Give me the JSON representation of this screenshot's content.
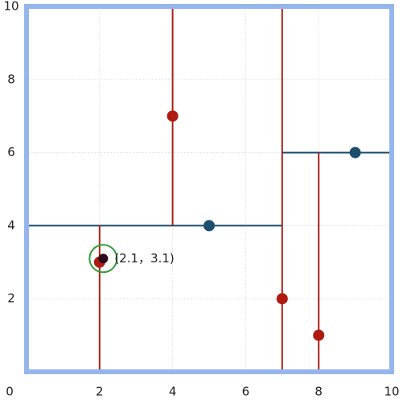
{
  "chart_data": {
    "type": "scatter",
    "xlim": [
      0,
      10
    ],
    "ylim": [
      0,
      10
    ],
    "xticks": [
      0,
      2,
      4,
      6,
      8,
      10
    ],
    "yticks": [
      2,
      4,
      6,
      8,
      10
    ],
    "grid": true,
    "border_color": "#94b6ec",
    "splits": [
      {
        "x": [
          7,
          7
        ],
        "y": [
          0,
          10
        ],
        "color": "#a8201a"
      },
      {
        "x": [
          0,
          7
        ],
        "y": [
          4,
          4
        ],
        "color": "#1d4e6e"
      },
      {
        "x": [
          7,
          10
        ],
        "y": [
          6,
          6
        ],
        "color": "#1d4e6e"
      },
      {
        "x": [
          4,
          4
        ],
        "y": [
          4,
          10
        ],
        "color": "#a8201a"
      },
      {
        "x": [
          2,
          2
        ],
        "y": [
          0,
          4
        ],
        "color": "#a8201a"
      },
      {
        "x": [
          8,
          8
        ],
        "y": [
          0,
          6
        ],
        "color": "#a8201a"
      }
    ],
    "series": [
      {
        "color": "#b01a12",
        "x": [
          2,
          4,
          7,
          8
        ],
        "y": [
          3,
          7,
          2,
          1
        ]
      },
      {
        "color": "#1d4e6e",
        "x": [
          5,
          9
        ],
        "y": [
          4,
          6
        ]
      }
    ],
    "query": {
      "x": 2.1,
      "y": 3.1,
      "label": "(2.1，3.1)",
      "ring_color": "#2e9e3a"
    }
  }
}
